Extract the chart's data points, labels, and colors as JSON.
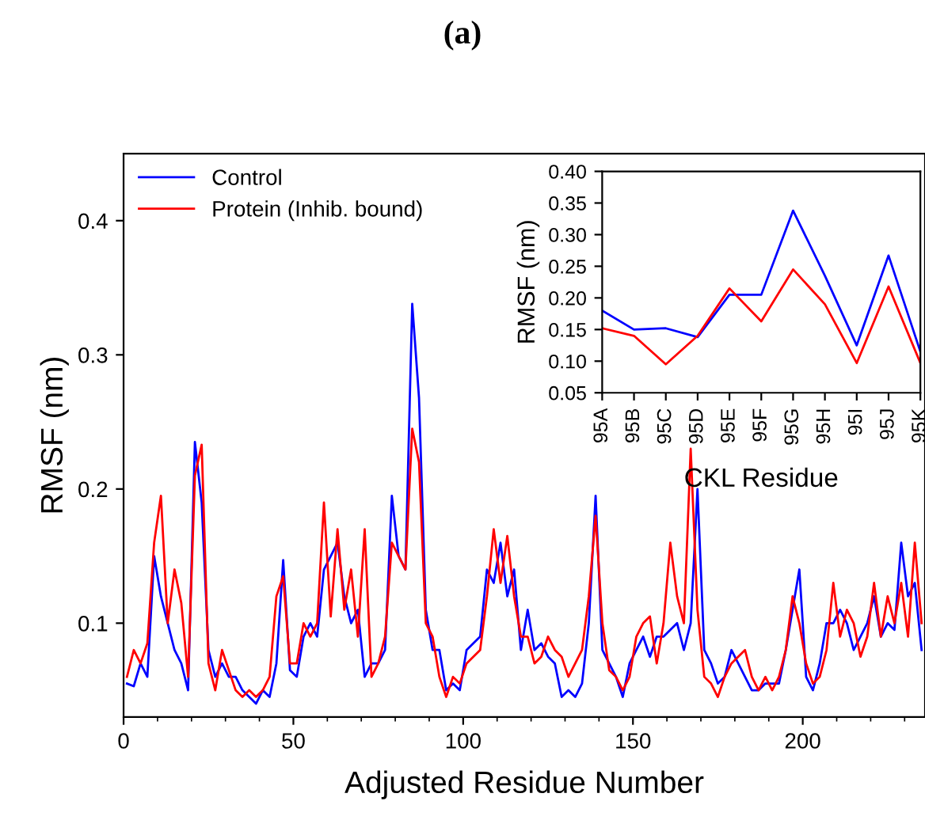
{
  "chart_data": [
    {
      "type": "line",
      "title": "(a)",
      "xlabel": "Adjusted Residue Number",
      "ylabel": "RMSF (nm)",
      "xlim": [
        0,
        236
      ],
      "ylim": [
        0.03,
        0.45
      ],
      "xticks": [
        0,
        50,
        100,
        150,
        200
      ],
      "yticks": [
        0.1,
        0.2,
        0.3,
        0.4
      ],
      "grid": false,
      "legend": "top left",
      "marker": "none",
      "line_style": "solid",
      "x": [
        1,
        3,
        5,
        7,
        9,
        11,
        13,
        15,
        17,
        19,
        21,
        23,
        25,
        27,
        29,
        31,
        33,
        35,
        37,
        39,
        41,
        43,
        45,
        47,
        49,
        51,
        53,
        55,
        57,
        59,
        61,
        63,
        65,
        67,
        69,
        71,
        73,
        75,
        77,
        79,
        81,
        83,
        85,
        87,
        89,
        91,
        93,
        95,
        97,
        99,
        101,
        103,
        105,
        107,
        109,
        111,
        113,
        115,
        117,
        119,
        121,
        123,
        125,
        127,
        129,
        131,
        133,
        135,
        137,
        139,
        141,
        143,
        145,
        147,
        149,
        151,
        153,
        155,
        157,
        159,
        161,
        163,
        165,
        167,
        169,
        171,
        173,
        175,
        177,
        179,
        181,
        183,
        185,
        187,
        189,
        191,
        193,
        195,
        197,
        199,
        201,
        203,
        205,
        207,
        209,
        211,
        213,
        215,
        217,
        219,
        221,
        223,
        225,
        227,
        229,
        231,
        233,
        235
      ],
      "series": [
        {
          "name": "Control",
          "color": "#0000ff",
          "values": [
            0.055,
            0.053,
            0.07,
            0.06,
            0.15,
            0.12,
            0.1,
            0.08,
            0.07,
            0.05,
            0.235,
            0.19,
            0.08,
            0.06,
            0.07,
            0.06,
            0.06,
            0.05,
            0.045,
            0.04,
            0.05,
            0.045,
            0.07,
            0.147,
            0.065,
            0.06,
            0.09,
            0.1,
            0.09,
            0.14,
            0.15,
            0.16,
            0.12,
            0.1,
            0.11,
            0.06,
            0.07,
            0.07,
            0.08,
            0.195,
            0.15,
            0.14,
            0.338,
            0.268,
            0.11,
            0.08,
            0.08,
            0.05,
            0.055,
            0.05,
            0.08,
            0.085,
            0.09,
            0.14,
            0.13,
            0.16,
            0.12,
            0.14,
            0.08,
            0.11,
            0.08,
            0.085,
            0.075,
            0.07,
            0.045,
            0.05,
            0.045,
            0.055,
            0.1,
            0.195,
            0.08,
            0.07,
            0.06,
            0.045,
            0.07,
            0.08,
            0.09,
            0.075,
            0.09,
            0.09,
            0.095,
            0.1,
            0.08,
            0.1,
            0.2,
            0.08,
            0.07,
            0.055,
            0.06,
            0.08,
            0.07,
            0.06,
            0.05,
            0.05,
            0.055,
            0.055,
            0.055,
            0.08,
            0.11,
            0.14,
            0.06,
            0.05,
            0.07,
            0.1,
            0.1,
            0.11,
            0.1,
            0.08,
            0.09,
            0.1,
            0.12,
            0.09,
            0.1,
            0.095,
            0.16,
            0.12,
            0.13,
            0.08
          ]
        },
        {
          "name": "Protein (Inhib. bound)",
          "color": "#ff0000",
          "values": [
            0.06,
            0.08,
            0.07,
            0.085,
            0.16,
            0.195,
            0.1,
            0.14,
            0.115,
            0.06,
            0.21,
            0.233,
            0.07,
            0.05,
            0.08,
            0.065,
            0.05,
            0.045,
            0.05,
            0.045,
            0.05,
            0.06,
            0.12,
            0.135,
            0.07,
            0.07,
            0.1,
            0.09,
            0.1,
            0.19,
            0.105,
            0.17,
            0.11,
            0.14,
            0.09,
            0.17,
            0.06,
            0.07,
            0.09,
            0.16,
            0.15,
            0.14,
            0.245,
            0.22,
            0.1,
            0.09,
            0.06,
            0.045,
            0.06,
            0.055,
            0.07,
            0.075,
            0.08,
            0.12,
            0.17,
            0.13,
            0.165,
            0.12,
            0.09,
            0.09,
            0.07,
            0.075,
            0.09,
            0.08,
            0.075,
            0.06,
            0.07,
            0.08,
            0.12,
            0.18,
            0.1,
            0.065,
            0.06,
            0.05,
            0.06,
            0.09,
            0.1,
            0.105,
            0.07,
            0.1,
            0.16,
            0.12,
            0.1,
            0.23,
            0.11,
            0.06,
            0.055,
            0.045,
            0.06,
            0.07,
            0.075,
            0.08,
            0.06,
            0.05,
            0.06,
            0.05,
            0.06,
            0.08,
            0.12,
            0.1,
            0.07,
            0.055,
            0.06,
            0.08,
            0.13,
            0.09,
            0.11,
            0.1,
            0.075,
            0.09,
            0.13,
            0.09,
            0.12,
            0.1,
            0.13,
            0.09,
            0.16,
            0.1
          ]
        }
      ]
    },
    {
      "type": "line",
      "xlabel": "CKL Residue",
      "ylabel": "RMSF (nm)",
      "ylim": [
        0.05,
        0.4
      ],
      "yticks": [
        {
          "value": 0.05,
          "label": "0.05"
        },
        {
          "value": 0.1,
          "label": "0.10"
        },
        {
          "value": 0.15,
          "label": "0.15"
        },
        {
          "value": 0.2,
          "label": "0.20"
        },
        {
          "value": 0.25,
          "label": "0.25"
        },
        {
          "value": 0.3,
          "label": "0.30"
        },
        {
          "value": 0.35,
          "label": "0.35"
        },
        {
          "value": 0.4,
          "label": "0.40"
        }
      ],
      "grid": false,
      "marker": "none",
      "line_style": "solid",
      "categories": [
        "95A",
        "95B",
        "95C",
        "95D",
        "95E",
        "95F",
        "95G",
        "95H",
        "95I",
        "95J",
        "95K"
      ],
      "series": [
        {
          "color": "#0000ff",
          "values": [
            0.18,
            0.15,
            0.152,
            0.138,
            0.205,
            0.205,
            0.338,
            0.235,
            0.125,
            0.267,
            0.115
          ]
        },
        {
          "color": "#ff0000",
          "values": [
            0.152,
            0.14,
            0.095,
            0.14,
            0.215,
            0.163,
            0.245,
            0.19,
            0.097,
            0.218,
            0.097
          ]
        }
      ]
    }
  ]
}
